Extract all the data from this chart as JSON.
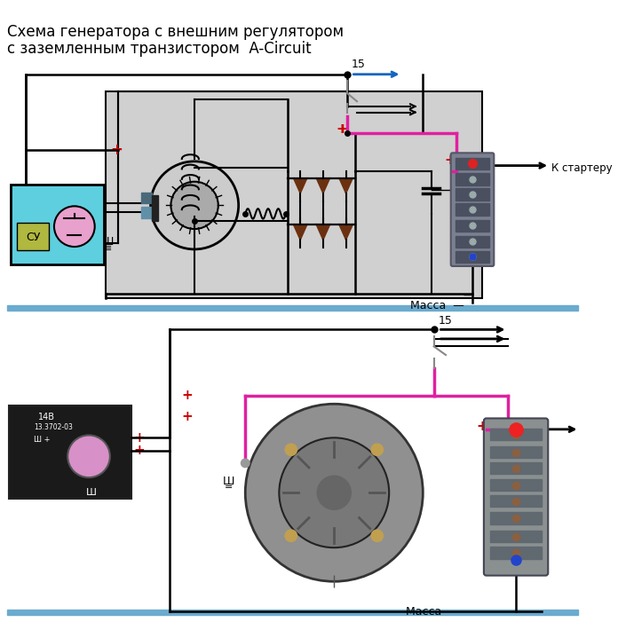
{
  "title_line1": "Схема генератора с внешним регулятором",
  "title_line2": "с заземленным транзистором  A-Circuit",
  "bg_color": "#ffffff",
  "panel_color": "#d0d0d0",
  "cyan_box_color": "#5ecfdf",
  "pink_line_color": "#e020a0",
  "blue_arrow_color": "#1565c0",
  "red_plus_color": "#cc0000",
  "ground_bar_color": "#6aabcf",
  "massa_text": "Масса",
  "k_starter_text": "К стартеру",
  "label_15": "15",
  "label_sh": "Ш",
  "label_su": "СУ",
  "diode_color": "#6b3010",
  "switch_color": "#888888",
  "connector_color": "#7a8090",
  "connector_color2": "#8a9090",
  "screw_color": "#8a6040",
  "su_green": "#b0b840"
}
